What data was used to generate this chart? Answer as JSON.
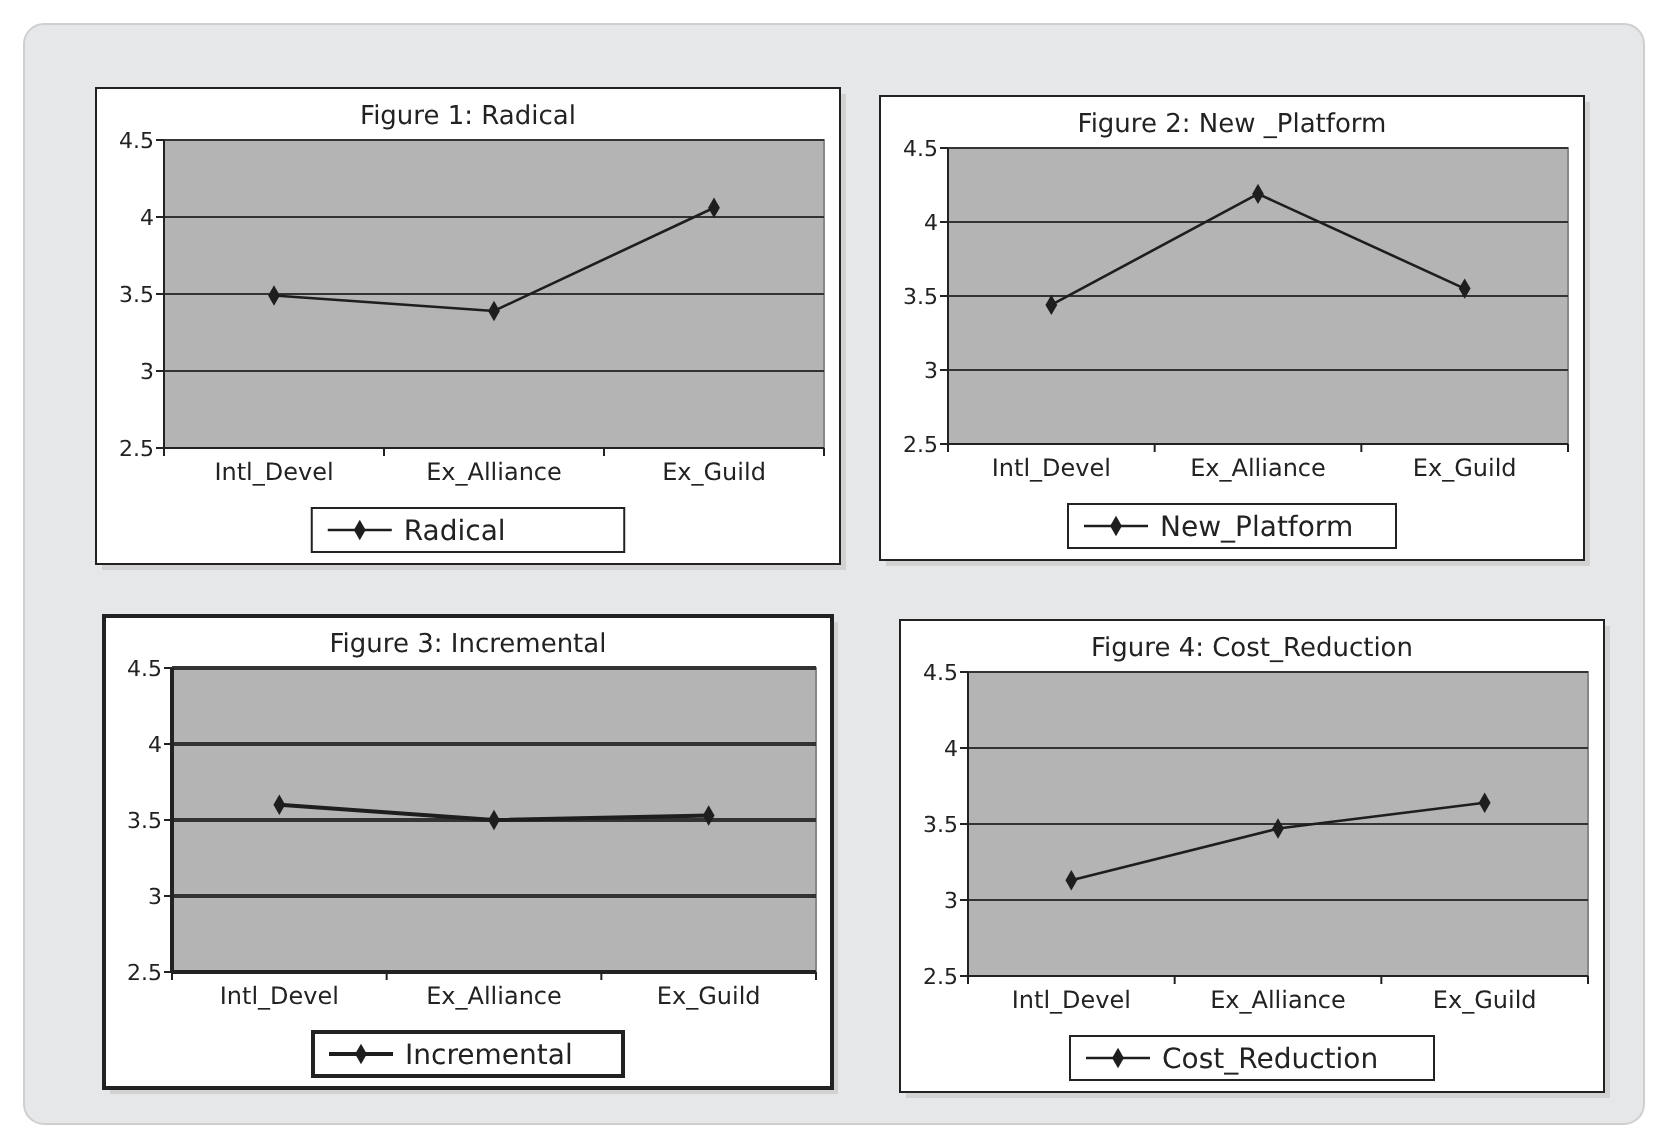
{
  "chart_data": [
    {
      "type": "line",
      "title": "Figure 1: Radical",
      "categories": [
        "Intl_Devel",
        "Ex_Alliance",
        "Ex_Guild"
      ],
      "series": [
        {
          "name": "Radical",
          "color": "#1e1e1e",
          "values": [
            3.49,
            3.39,
            4.06
          ]
        }
      ],
      "ylim": [
        2.5,
        4.5
      ],
      "yticks": [
        2.5,
        3,
        3.5,
        4,
        4.5
      ],
      "grid": "y",
      "legend": "bottom",
      "marker": "diamond"
    },
    {
      "type": "line",
      "title": "Figure 2: New _Platform",
      "categories": [
        "Intl_Devel",
        "Ex_Alliance",
        "Ex_Guild"
      ],
      "series": [
        {
          "name": "New_Platform",
          "color": "#1e1e1e",
          "values": [
            3.44,
            4.19,
            3.55
          ]
        }
      ],
      "ylim": [
        2.5,
        4.5
      ],
      "yticks": [
        2.5,
        3,
        3.5,
        4,
        4.5
      ],
      "grid": "y",
      "legend": "bottom",
      "marker": "diamond"
    },
    {
      "type": "line",
      "title": "Figure 3: Incremental",
      "categories": [
        "Intl_Devel",
        "Ex_Alliance",
        "Ex_Guild"
      ],
      "series": [
        {
          "name": "Incremental",
          "color": "#1e1e1e",
          "values": [
            3.6,
            3.5,
            3.53
          ]
        }
      ],
      "ylim": [
        2.5,
        4.5
      ],
      "yticks": [
        2.5,
        3,
        3.5,
        4,
        4.5
      ],
      "grid": "y",
      "legend": "bottom",
      "marker": "diamond"
    },
    {
      "type": "line",
      "title": "Figure 4: Cost_Reduction",
      "categories": [
        "Intl_Devel",
        "Ex_Alliance",
        "Ex_Guild"
      ],
      "series": [
        {
          "name": "Cost_Reduction",
          "color": "#1e1e1e",
          "values": [
            3.13,
            3.47,
            3.64
          ]
        }
      ],
      "ylim": [
        2.5,
        4.5
      ],
      "yticks": [
        2.5,
        3,
        3.5,
        4,
        4.5
      ],
      "grid": "y",
      "legend": "bottom",
      "marker": "diamond"
    }
  ]
}
